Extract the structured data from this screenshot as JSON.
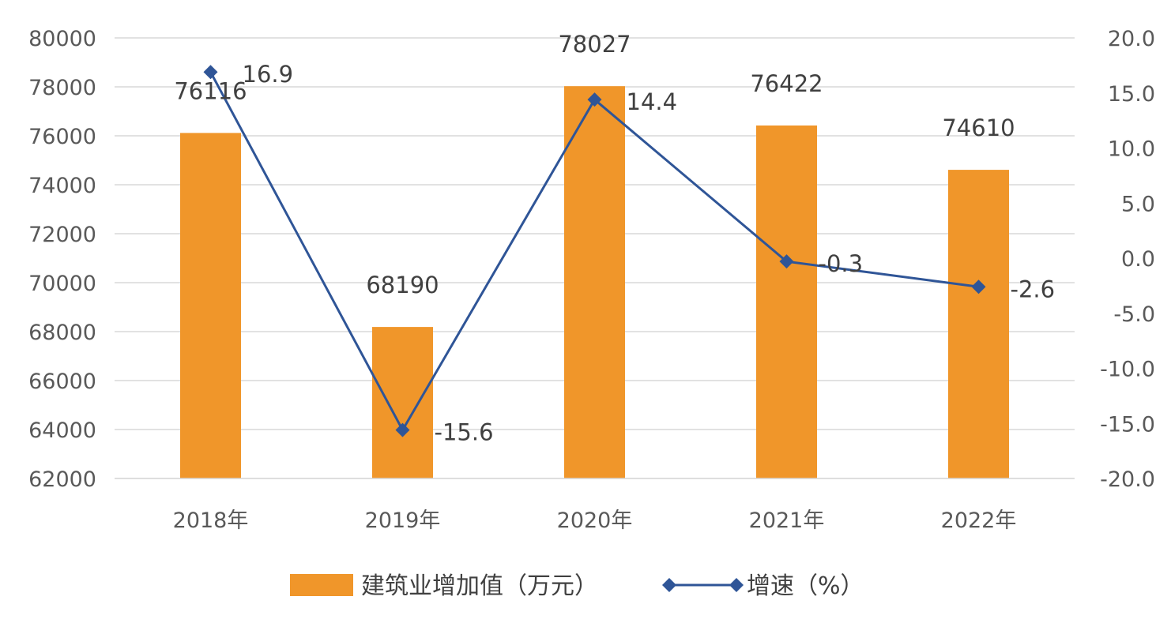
{
  "chart_data": {
    "type": "bar",
    "categories": [
      "2018年",
      "2019年",
      "2020年",
      "2021年",
      "2022年"
    ],
    "series": [
      {
        "name": "建筑业增加值（万元）",
        "kind": "bar",
        "axis": "left",
        "color": "#F0962A",
        "values": [
          76116,
          68190,
          78027,
          76422,
          74610
        ],
        "labels": [
          "76116",
          "68190",
          "78027",
          "76422",
          "74610"
        ]
      },
      {
        "name": "增速（%）",
        "kind": "line",
        "axis": "right",
        "color": "#2F5597",
        "values": [
          16.9,
          -15.6,
          14.4,
          -0.3,
          -2.6
        ],
        "labels": [
          "16.9",
          "-15.6",
          "14.4",
          "-0.3",
          "-2.6"
        ]
      }
    ],
    "y_left": {
      "min": 62000,
      "max": 80000,
      "step": 2000,
      "tick_labels": [
        "62000",
        "64000",
        "66000",
        "68000",
        "70000",
        "72000",
        "74000",
        "76000",
        "78000",
        "80000"
      ]
    },
    "y_right": {
      "min": -20,
      "max": 20,
      "step": 5,
      "tick_labels": [
        "-20.0",
        "-15.0",
        "-10.0",
        "-5.0",
        "0.0",
        "5.0",
        "10.0",
        "15.0",
        "20.0"
      ]
    },
    "grid": true,
    "legend": "bottom"
  }
}
